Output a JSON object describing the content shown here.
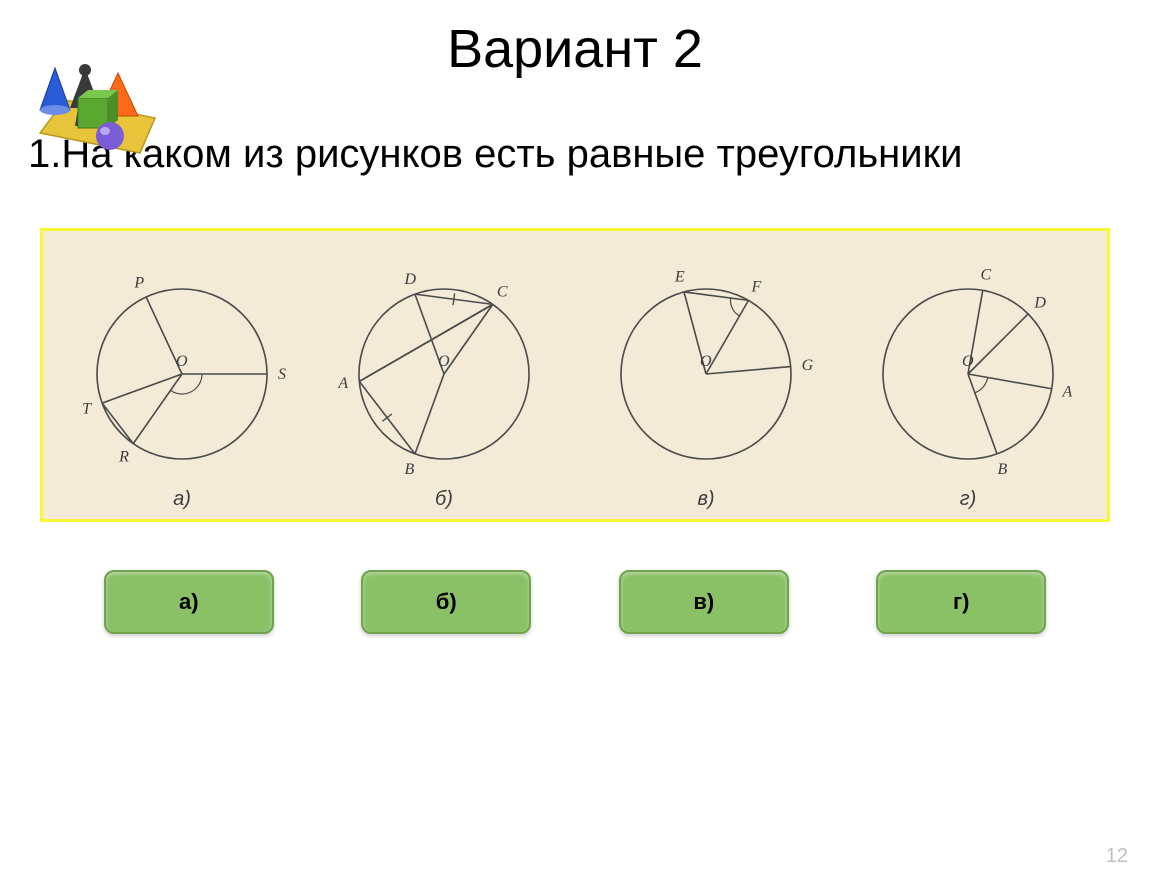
{
  "title": "Вариант 2",
  "question": "1.На каком из рисунков есть равные треугольники",
  "page_number": "12",
  "frame_border_color": "#f7f733",
  "frame_bg": "#f3ebd8",
  "clipart": {
    "mat_color": "#e8c43a",
    "cone_color": "#2a5bd6",
    "pyramid_color": "#ff6a1a",
    "cube_color": "#5aa82f",
    "sphere_color": "#7a5cd6",
    "compass_color": "#3a3a3a"
  },
  "panels": [
    {
      "label": "а)",
      "type": "circle-diagram",
      "center_label": "O",
      "points": [
        {
          "name": "P",
          "angle": 115
        },
        {
          "name": "S",
          "angle": 0
        },
        {
          "name": "R",
          "angle": 235
        },
        {
          "name": "T",
          "angle": 200
        }
      ],
      "chords": [
        [
          "T",
          "R"
        ]
      ],
      "radii": [
        "P",
        "S",
        "R",
        "T"
      ],
      "angle_arcs": [
        {
          "at": "O",
          "between": [
            "S",
            "R"
          ]
        }
      ]
    },
    {
      "label": "б)",
      "type": "circle-diagram",
      "center_label": "O",
      "points": [
        {
          "name": "D",
          "angle": 110
        },
        {
          "name": "C",
          "angle": 55
        },
        {
          "name": "A",
          "angle": 185
        },
        {
          "name": "B",
          "angle": 250
        }
      ],
      "radii": [
        "D",
        "C",
        "B"
      ],
      "chords": [
        [
          "D",
          "C"
        ],
        [
          "A",
          "B"
        ],
        [
          "A",
          "C"
        ]
      ],
      "ticks": [
        [
          "D",
          "C"
        ],
        [
          "A",
          "B"
        ]
      ],
      "secant_through_O": [
        "A",
        "C"
      ]
    },
    {
      "label": "в)",
      "type": "circle-diagram",
      "center_label": "O",
      "points": [
        {
          "name": "E",
          "angle": 105
        },
        {
          "name": "F",
          "angle": 60
        },
        {
          "name": "G",
          "angle": 5
        }
      ],
      "radii": [
        "E",
        "F",
        "G"
      ],
      "chords": [
        [
          "E",
          "F"
        ]
      ],
      "angle_arcs": [
        {
          "at": "F",
          "between": [
            "E",
            "O"
          ]
        }
      ]
    },
    {
      "label": "г)",
      "type": "circle-diagram",
      "center_label": "O",
      "points": [
        {
          "name": "C",
          "angle": 80
        },
        {
          "name": "D",
          "angle": 45
        },
        {
          "name": "A",
          "angle": 350
        },
        {
          "name": "B",
          "angle": 290
        }
      ],
      "radii": [
        "C",
        "D",
        "A",
        "B"
      ],
      "angle_arcs": [
        {
          "at": "O",
          "between": [
            "A",
            "B"
          ]
        }
      ]
    }
  ],
  "answers": [
    {
      "label": "а)"
    },
    {
      "label": "б)"
    },
    {
      "label": "в)"
    },
    {
      "label": "г)"
    }
  ],
  "answer_btn": {
    "bg": "#8ac066",
    "border": "#6fa34d"
  }
}
